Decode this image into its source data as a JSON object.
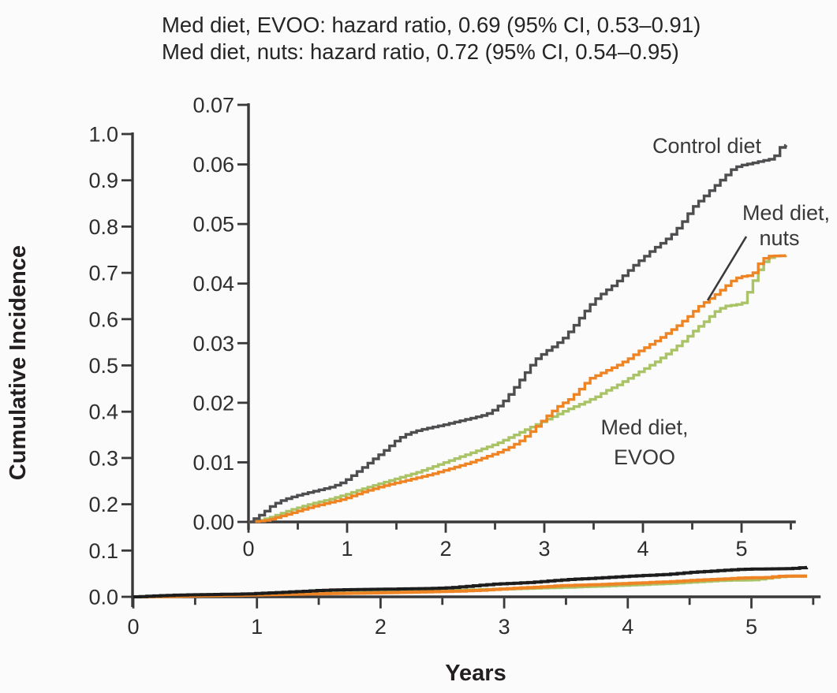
{
  "chart_data": {
    "type": "line",
    "subtype": "step-cumulative-incidence (Kaplan-Meier style, main plot + zoom inset)",
    "title_lines": {
      "line1": "Med diet, EVOO: hazard ratio, 0.69 (95% CI, 0.53–0.91)",
      "line2": "Med diet, nuts: hazard ratio, 0.72 (95% CI, 0.54–0.95)"
    },
    "main_axis": {
      "xlabel": "Years",
      "ylabel": "Cumulative Incidence",
      "xlim": [
        0,
        5.56
      ],
      "ylim": [
        0,
        1.0
      ],
      "xtick_labels": [
        "0",
        "1",
        "2",
        "3",
        "4",
        "5"
      ],
      "xminor_step": 0.5,
      "ytick_step": 0.1,
      "ytick_labels": [
        "0.0",
        "0.1",
        "0.2",
        "0.3",
        "0.4",
        "0.5",
        "0.6",
        "0.7",
        "0.8",
        "0.9",
        "1.0"
      ],
      "grid": false,
      "legend_position": "none (direct curve labels in inset)"
    },
    "inset_axis": {
      "xlabel": "",
      "ylabel": "",
      "xlim": [
        0,
        5.55
      ],
      "ylim": [
        0,
        0.07
      ],
      "xtick_labels": [
        "0",
        "1",
        "2",
        "3",
        "4",
        "5"
      ],
      "xminor_step": 0.5,
      "ytick_step": 0.01,
      "ytick_labels": [
        "0.00",
        "0.01",
        "0.02",
        "0.03",
        "0.04",
        "0.05",
        "0.06",
        "0.07"
      ],
      "grid": false
    },
    "labels": {
      "control": "Control diet",
      "nuts_line1": "Med diet,",
      "nuts_line2": "nuts",
      "evoo_line1": "Med diet,",
      "evoo_line2": "EVOO"
    },
    "series": [
      {
        "name": "Control diet",
        "color": "#4e4e50",
        "main_color": "#1d1d1d",
        "points": [
          [
            0,
            0
          ],
          [
            0.08,
            0.0008
          ],
          [
            0.15,
            0.0016
          ],
          [
            0.22,
            0.0026
          ],
          [
            0.3,
            0.0034
          ],
          [
            0.4,
            0.004
          ],
          [
            0.5,
            0.0045
          ],
          [
            0.62,
            0.005
          ],
          [
            0.72,
            0.0054
          ],
          [
            0.82,
            0.0058
          ],
          [
            0.92,
            0.0064
          ],
          [
            1,
            0.0072
          ],
          [
            1.08,
            0.0082
          ],
          [
            1.16,
            0.0092
          ],
          [
            1.25,
            0.0104
          ],
          [
            1.33,
            0.0114
          ],
          [
            1.42,
            0.0126
          ],
          [
            1.5,
            0.0138
          ],
          [
            1.58,
            0.0146
          ],
          [
            1.68,
            0.0152
          ],
          [
            1.8,
            0.0157
          ],
          [
            1.95,
            0.0162
          ],
          [
            2.1,
            0.0168
          ],
          [
            2.25,
            0.0174
          ],
          [
            2.4,
            0.018
          ],
          [
            2.5,
            0.019
          ],
          [
            2.58,
            0.0202
          ],
          [
            2.66,
            0.0218
          ],
          [
            2.74,
            0.0236
          ],
          [
            2.82,
            0.0254
          ],
          [
            2.9,
            0.0272
          ],
          [
            3,
            0.0285
          ],
          [
            3.1,
            0.0296
          ],
          [
            3.2,
            0.031
          ],
          [
            3.3,
            0.033
          ],
          [
            3.4,
            0.0352
          ],
          [
            3.5,
            0.0372
          ],
          [
            3.6,
            0.0386
          ],
          [
            3.7,
            0.0398
          ],
          [
            3.8,
            0.0414
          ],
          [
            3.9,
            0.043
          ],
          [
            4,
            0.0444
          ],
          [
            4.1,
            0.0458
          ],
          [
            4.2,
            0.047
          ],
          [
            4.3,
            0.0484
          ],
          [
            4.4,
            0.0504
          ],
          [
            4.5,
            0.0528
          ],
          [
            4.6,
            0.0544
          ],
          [
            4.7,
            0.056
          ],
          [
            4.8,
            0.0576
          ],
          [
            4.9,
            0.0592
          ],
          [
            4.97,
            0.0598
          ],
          [
            5.1,
            0.0602
          ],
          [
            5.2,
            0.0606
          ],
          [
            5.32,
            0.061
          ],
          [
            5.38,
            0.0628
          ],
          [
            5.45,
            0.0632
          ]
        ]
      },
      {
        "name": "Med diet, nuts",
        "color": "#ee8424",
        "main_color": "#ee8424",
        "points": [
          [
            0,
            0
          ],
          [
            0.15,
            0.0002
          ],
          [
            0.25,
            0.0006
          ],
          [
            0.35,
            0.0011
          ],
          [
            0.45,
            0.0016
          ],
          [
            0.55,
            0.0021
          ],
          [
            0.65,
            0.0026
          ],
          [
            0.75,
            0.003
          ],
          [
            0.85,
            0.0034
          ],
          [
            0.95,
            0.0038
          ],
          [
            1.05,
            0.0044
          ],
          [
            1.15,
            0.005
          ],
          [
            1.25,
            0.0055
          ],
          [
            1.35,
            0.006
          ],
          [
            1.45,
            0.0064
          ],
          [
            1.55,
            0.0068
          ],
          [
            1.65,
            0.0072
          ],
          [
            1.75,
            0.0076
          ],
          [
            1.85,
            0.008
          ],
          [
            1.95,
            0.0085
          ],
          [
            2.05,
            0.009
          ],
          [
            2.15,
            0.0095
          ],
          [
            2.25,
            0.01
          ],
          [
            2.35,
            0.0106
          ],
          [
            2.45,
            0.0112
          ],
          [
            2.55,
            0.0118
          ],
          [
            2.65,
            0.0126
          ],
          [
            2.75,
            0.0136
          ],
          [
            2.85,
            0.015
          ],
          [
            2.95,
            0.0166
          ],
          [
            3.05,
            0.0182
          ],
          [
            3.15,
            0.0196
          ],
          [
            3.25,
            0.0206
          ],
          [
            3.35,
            0.0222
          ],
          [
            3.45,
            0.024
          ],
          [
            3.55,
            0.0248
          ],
          [
            3.65,
            0.0256
          ],
          [
            3.75,
            0.0264
          ],
          [
            3.85,
            0.0274
          ],
          [
            3.95,
            0.0286
          ],
          [
            4.05,
            0.0296
          ],
          [
            4.15,
            0.0306
          ],
          [
            4.25,
            0.0318
          ],
          [
            4.35,
            0.033
          ],
          [
            4.45,
            0.0344
          ],
          [
            4.55,
            0.036
          ],
          [
            4.65,
            0.0372
          ],
          [
            4.75,
            0.0384
          ],
          [
            4.85,
            0.0398
          ],
          [
            4.92,
            0.0408
          ],
          [
            5,
            0.0412
          ],
          [
            5.1,
            0.0414
          ],
          [
            5.18,
            0.0436
          ],
          [
            5.25,
            0.0446
          ],
          [
            5.45,
            0.0447
          ]
        ]
      },
      {
        "name": "Med diet, EVOO",
        "color": "#a9c366",
        "main_color": "#a9c366",
        "points": [
          [
            0,
            0
          ],
          [
            0.12,
            0.0003
          ],
          [
            0.22,
            0.0008
          ],
          [
            0.32,
            0.0014
          ],
          [
            0.42,
            0.002
          ],
          [
            0.52,
            0.0025
          ],
          [
            0.62,
            0.003
          ],
          [
            0.72,
            0.0034
          ],
          [
            0.82,
            0.0038
          ],
          [
            0.92,
            0.0043
          ],
          [
            1.02,
            0.0048
          ],
          [
            1.12,
            0.0054
          ],
          [
            1.22,
            0.0059
          ],
          [
            1.32,
            0.0064
          ],
          [
            1.42,
            0.0069
          ],
          [
            1.52,
            0.0074
          ],
          [
            1.62,
            0.0079
          ],
          [
            1.72,
            0.0084
          ],
          [
            1.82,
            0.009
          ],
          [
            1.92,
            0.0096
          ],
          [
            2.02,
            0.0102
          ],
          [
            2.12,
            0.0108
          ],
          [
            2.22,
            0.0114
          ],
          [
            2.32,
            0.012
          ],
          [
            2.42,
            0.0126
          ],
          [
            2.52,
            0.0132
          ],
          [
            2.62,
            0.014
          ],
          [
            2.72,
            0.0148
          ],
          [
            2.82,
            0.0156
          ],
          [
            2.92,
            0.0164
          ],
          [
            3.02,
            0.0172
          ],
          [
            3.12,
            0.018
          ],
          [
            3.22,
            0.0188
          ],
          [
            3.32,
            0.0195
          ],
          [
            3.42,
            0.0202
          ],
          [
            3.52,
            0.021
          ],
          [
            3.62,
            0.022
          ],
          [
            3.72,
            0.0228
          ],
          [
            3.82,
            0.0238
          ],
          [
            3.92,
            0.0248
          ],
          [
            4.02,
            0.0258
          ],
          [
            4.12,
            0.0268
          ],
          [
            4.22,
            0.028
          ],
          [
            4.32,
            0.0292
          ],
          [
            4.42,
            0.0306
          ],
          [
            4.52,
            0.0322
          ],
          [
            4.62,
            0.0336
          ],
          [
            4.72,
            0.0352
          ],
          [
            4.82,
            0.0362
          ],
          [
            5,
            0.0366
          ],
          [
            5.08,
            0.0392
          ],
          [
            5.15,
            0.0418
          ],
          [
            5.22,
            0.0436
          ],
          [
            5.3,
            0.0446
          ],
          [
            5.45,
            0.0447
          ]
        ]
      }
    ],
    "colors": {
      "control_inset": "#4e4e50",
      "control_main": "#1d1d1d",
      "nuts": "#ee8424",
      "evoo": "#a9c366",
      "axis": "#39393b",
      "text": "#2e2c2d",
      "background": "#fbfbfb"
    }
  }
}
